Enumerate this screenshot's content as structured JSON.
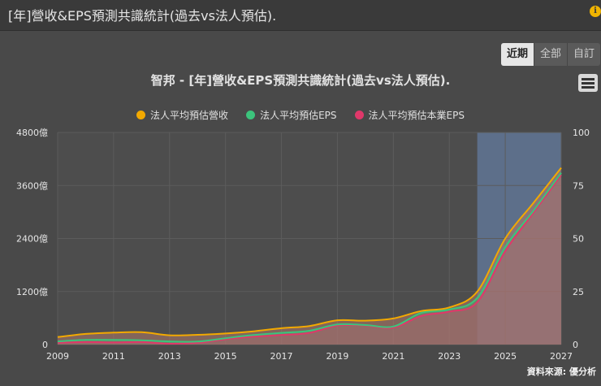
{
  "header": {
    "title": "[年]營收&EPS預測共識統計(過去vs法人預估)."
  },
  "tabs": [
    {
      "label": "近期",
      "active": true
    },
    {
      "label": "全部",
      "active": false
    },
    {
      "label": "自訂",
      "active": false
    }
  ],
  "source_label": "資料來源: 優分析",
  "colors": {
    "revenue": "#f2a900",
    "eps": "#3cc47c",
    "core_eps": "#e0386a",
    "forecast_band": "#5f7391",
    "fill": "#b07a68"
  },
  "chart_data": {
    "type": "area",
    "title": "智邦 - [年]營收&EPS預測共識統計(過去vs法人預估).",
    "legend_position": "top-center",
    "grid": true,
    "x": [
      2009,
      2010,
      2011,
      2012,
      2013,
      2014,
      2015,
      2016,
      2017,
      2018,
      2019,
      2020,
      2021,
      2022,
      2023,
      2024,
      2025,
      2026,
      2027
    ],
    "x_ticks": [
      "2009",
      "2011",
      "2013",
      "2015",
      "2017",
      "2019",
      "2021",
      "2023",
      "2025",
      "2027"
    ],
    "y_left": {
      "ticks": [
        "0",
        "1200億",
        "2400億",
        "3600億",
        "4800億"
      ],
      "range": [
        0,
        4800
      ]
    },
    "y_right": {
      "ticks": [
        "0",
        "25",
        "50",
        "75",
        "100"
      ],
      "range": [
        0,
        100
      ]
    },
    "forecast_region": [
      2024,
      2027
    ],
    "series": [
      {
        "name": "法人平均預估營收",
        "axis": "left",
        "values": [
          170,
          240,
          270,
          280,
          210,
          220,
          250,
          300,
          370,
          420,
          550,
          540,
          590,
          760,
          840,
          1200,
          2400,
          3200,
          4000
        ]
      },
      {
        "name": "法人平均預估EPS",
        "axis": "right",
        "values": [
          1.5,
          2.2,
          2.2,
          2.0,
          1.5,
          1.4,
          3.0,
          4.5,
          5.5,
          6.5,
          9.5,
          9.2,
          8.5,
          15.0,
          16.5,
          22.0,
          46.0,
          63.0,
          81.0
        ]
      },
      {
        "name": "法人平均預估本業EPS",
        "axis": "right",
        "values": [
          0.8,
          1.2,
          1.0,
          1.2,
          0.4,
          0.8,
          2.5,
          3.7,
          4.5,
          5.5,
          9.0,
          9.0,
          8.0,
          13.5,
          15.5,
          20.0,
          44.0,
          62.0,
          80.0
        ]
      }
    ]
  }
}
